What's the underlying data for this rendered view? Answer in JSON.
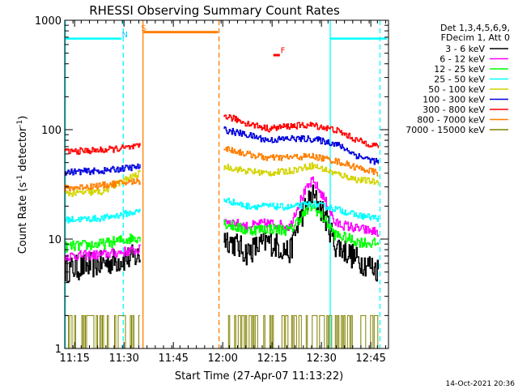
{
  "chart_data": {
    "type": "line",
    "title": "RHESSI Observing Summary Count Rates",
    "xlabel": "Start Time (27-Apr-07 11:13:22)",
    "ylabel_main": "Count Rate (s",
    "ylabel_sup1": "-1",
    "ylabel_mid": " detector",
    "ylabel_sup2": "-1",
    "ylabel_end": ")",
    "footer": "14-Oct-2021 20:36",
    "x_range_minutes": [
      -1.37,
      97.0
    ],
    "y_range_log": [
      1,
      1000
    ],
    "x_ticks": [
      {
        "label": "11:15",
        "t": 1.63
      },
      {
        "label": "11:30",
        "t": 16.63
      },
      {
        "label": "11:45",
        "t": 31.63
      },
      {
        "label": "12:00",
        "t": 46.63
      },
      {
        "label": "12:15",
        "t": 61.63
      },
      {
        "label": "12:30",
        "t": 76.63
      },
      {
        "label": "12:45",
        "t": 91.63
      }
    ],
    "y_ticks": [
      {
        "label": "1",
        "v": 1
      },
      {
        "label": "10",
        "v": 10
      },
      {
        "label": "100",
        "v": 100
      },
      {
        "label": "1000",
        "v": 1000
      }
    ],
    "legend_header": [
      "Det 1,3,4,5,6,9,",
      "FDecim 1, Att 0"
    ],
    "series": [
      {
        "name": "3 - 6 keV",
        "color": "#000000",
        "segments": [
          {
            "t0": -1.37,
            "t1": 21.6,
            "v": [
              5.2,
              6.0,
              7.0
            ]
          },
          {
            "t0": 46.9,
            "t1": 94.0,
            "v": [
              10.5,
              7.5,
              9.5,
              7.5,
              25,
              9.0,
              6.5,
              5.2
            ]
          }
        ]
      },
      {
        "name": "6 - 12 keV",
        "color": "#ff00ff",
        "segments": [
          {
            "t0": -1.37,
            "t1": 21.6,
            "v": [
              7.0,
              7.2,
              8.0
            ]
          },
          {
            "t0": 46.9,
            "t1": 94.0,
            "v": [
              15,
              13,
              14,
              13,
              34,
              14,
              12.5,
              11.5
            ]
          }
        ]
      },
      {
        "name": "12 - 25 keV",
        "color": "#00ff00",
        "segments": [
          {
            "t0": -1.37,
            "t1": 21.6,
            "v": [
              8.5,
              9.0,
              10.5
            ]
          },
          {
            "t0": 46.9,
            "t1": 94.0,
            "v": [
              14,
              12,
              12.5,
              12,
              20,
              11,
              9.5,
              9.0
            ]
          }
        ]
      },
      {
        "name": "25 - 50 keV",
        "color": "#00ffff",
        "segments": [
          {
            "t0": -1.37,
            "t1": 21.6,
            "v": [
              15,
              15.5,
              18
            ]
          },
          {
            "t0": 46.9,
            "t1": 94.0,
            "v": [
              23,
              20,
              20,
              19.5,
              21,
              19,
              16.5,
              15.5
            ]
          }
        ]
      },
      {
        "name": "50 - 100 keV",
        "color": "#d4d400",
        "segments": [
          {
            "t0": -1.37,
            "t1": 21.6,
            "v": [
              26,
              27,
              40
            ]
          },
          {
            "t0": 46.9,
            "t1": 94.0,
            "v": [
              46,
              42,
              40,
              42,
              47,
              40,
              35,
              33
            ]
          }
        ]
      },
      {
        "name": "100 - 300 keV",
        "color": "#0000dd",
        "segments": [
          {
            "t0": -1.37,
            "t1": 21.6,
            "v": [
              41,
              42,
              46
            ]
          },
          {
            "t0": 46.9,
            "t1": 94.0,
            "v": [
              100,
              90,
              80,
              83,
              82,
              75,
              58,
              50
            ]
          }
        ]
      },
      {
        "name": "300 - 800 keV",
        "color": "#ff0000",
        "segments": [
          {
            "t0": -1.37,
            "t1": 21.6,
            "v": [
              63,
              65,
              70
            ]
          },
          {
            "t0": 46.9,
            "t1": 94.0,
            "v": [
              135,
              115,
              102,
              108,
              110,
              100,
              80,
              70
            ]
          }
        ]
      },
      {
        "name": "800 - 7000 keV",
        "color": "#ff7f00",
        "segments": [
          {
            "t0": -1.37,
            "t1": 21.6,
            "v": [
              29,
              31,
              34
            ]
          },
          {
            "t0": 46.9,
            "t1": 94.0,
            "v": [
              68,
              60,
              55,
              56,
              57,
              52,
              45,
              40
            ]
          }
        ]
      },
      {
        "name": "7000 - 15000 keV",
        "color": "#808000",
        "segments": [
          {
            "t0": -1.37,
            "t1": 21.6,
            "v": [
              1,
              2
            ]
          },
          {
            "t0": 46.9,
            "t1": 94.0,
            "v": [
              1,
              2
            ]
          }
        ]
      }
    ],
    "annotations": [
      {
        "text": "N",
        "color": "#00ccff",
        "t": 16.9,
        "v": 700
      },
      {
        "text": "S",
        "color": "#ff7f00",
        "t": 22.6,
        "v": 800
      },
      {
        "text": "F",
        "color": "#ff0000",
        "t": 64.9,
        "v": 500
      }
    ]
  }
}
